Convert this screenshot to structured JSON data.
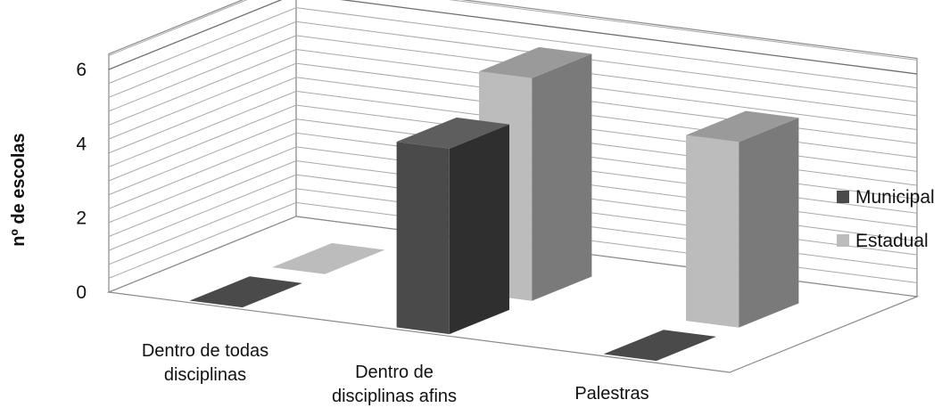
{
  "chart_data": {
    "type": "bar",
    "categories": [
      [
        "Dentro de todas",
        "disciplinas"
      ],
      [
        "Dentro de",
        "disciplinas afins"
      ],
      [
        "Palestras"
      ]
    ],
    "series": [
      {
        "name": "Municipal",
        "values": [
          0,
          5,
          0
        ],
        "color": "#4a4a4a",
        "side_color": "#2f2f2f",
        "top_color": "#5e5e5e"
      },
      {
        "name": "Estadual",
        "values": [
          0,
          6,
          5
        ],
        "color": "#bcbcbc",
        "side_color": "#7a7a7a",
        "top_color": "#9a9a9a"
      }
    ],
    "title": "",
    "xlabel": "",
    "ylabel": "nº de escolas",
    "ylim": [
      0,
      6
    ],
    "yticks": [
      "0",
      "2",
      "4",
      "6"
    ],
    "grid": true,
    "legend_position": "right",
    "projection": "3d"
  }
}
